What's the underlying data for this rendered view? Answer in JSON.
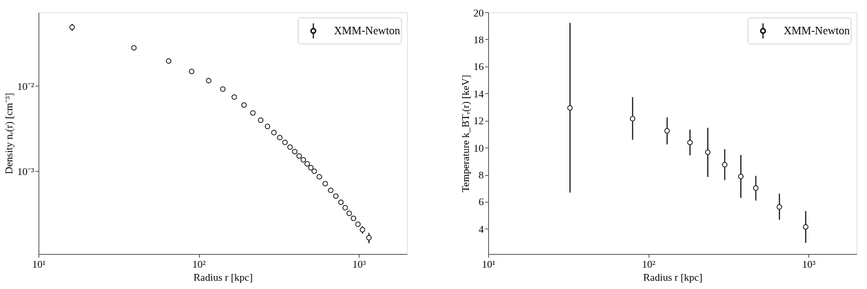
{
  "chart_data": [
    {
      "type": "scatter",
      "xlabel": "Radius r [kpc]",
      "ylabel": "Density nₑ(r) [cm⁻³]",
      "log": "xy",
      "marker": "circle",
      "legend": "top right",
      "grid": false,
      "xlim": [
        10,
        2000
      ],
      "xticks": [
        {
          "value": 10,
          "label": "10¹"
        },
        {
          "value": 100,
          "label": "10²"
        },
        {
          "value": 1000,
          "label": "10³"
        }
      ],
      "ylim": [
        0.000107,
        0.073
      ],
      "yticks": [
        {
          "value": 0.01,
          "label": "10⁻²"
        },
        {
          "value": 0.001,
          "label": "10⁻³"
        }
      ],
      "x": [
        16.2,
        39.4,
        64.9,
        90.4,
        115.4,
        141.5,
        166.8,
        192,
        218,
        244,
        269,
        295,
        321,
        346,
        372,
        398,
        424,
        450,
        476,
        502,
        527,
        567,
        617,
        668,
        719,
        773,
        822,
        871,
        927,
        988,
        1055,
        1157
      ],
      "series": [
        {
          "name": "XMM-Newton",
          "color": "#000000",
          "values": [
            0.0489,
            0.028,
            0.0196,
            0.0148,
            0.01155,
            0.00918,
            0.00741,
            0.00597,
            0.00482,
            0.00397,
            0.00335,
            0.00284,
            0.00248,
            0.00218,
            0.00192,
            0.0017,
            0.00151,
            0.00136,
            0.00122,
            0.0011,
            0.001,
            0.00086,
            0.000715,
            0.000597,
            0.00051,
            0.000433,
            0.000373,
            0.000321,
            0.00028,
            0.000239,
            0.000206,
            0.000166
          ],
          "errors": [
            0.0045,
            null,
            null,
            null,
            null,
            null,
            null,
            null,
            null,
            null,
            null,
            null,
            null,
            null,
            null,
            null,
            null,
            null,
            null,
            null,
            null,
            null,
            null,
            null,
            null,
            null,
            null,
            null,
            null,
            1e-05,
            2.1e-05,
            2.3e-05
          ]
        }
      ]
    },
    {
      "type": "scatter",
      "xlabel": "Radius r [kpc]",
      "ylabel": "Temperature k_BTₑ(r) [keV]",
      "log": "x",
      "marker": "circle",
      "legend": "top right",
      "grid": false,
      "xlim": [
        10,
        2000
      ],
      "xticks": [
        {
          "value": 10,
          "label": "10¹"
        },
        {
          "value": 100,
          "label": "10²"
        },
        {
          "value": 1000,
          "label": "10³"
        }
      ],
      "ylim": [
        2.14,
        20.0
      ],
      "yticks": [
        4,
        6,
        8,
        10,
        12,
        14,
        16,
        18,
        20
      ],
      "x": [
        32.4,
        79.7,
        130.9,
        182,
        235,
        300,
        378,
        469,
        658,
        961
      ],
      "series": [
        {
          "name": "XMM-Newton",
          "color": "#000000",
          "values": [
            12.94,
            12.14,
            11.24,
            10.38,
            9.66,
            8.74,
            7.87,
            7.01,
            5.62,
            4.14
          ],
          "errors": [
            [
              6.68,
              19.22
            ],
            [
              10.58,
              13.73
            ],
            [
              10.24,
              12.24
            ],
            [
              9.44,
              11.34
            ],
            [
              7.84,
              11.46
            ],
            [
              7.6,
              9.89
            ],
            [
              6.29,
              9.46
            ],
            [
              6.09,
              7.91
            ],
            [
              4.67,
              6.6
            ],
            [
              2.96,
              5.31
            ]
          ]
        }
      ]
    }
  ]
}
